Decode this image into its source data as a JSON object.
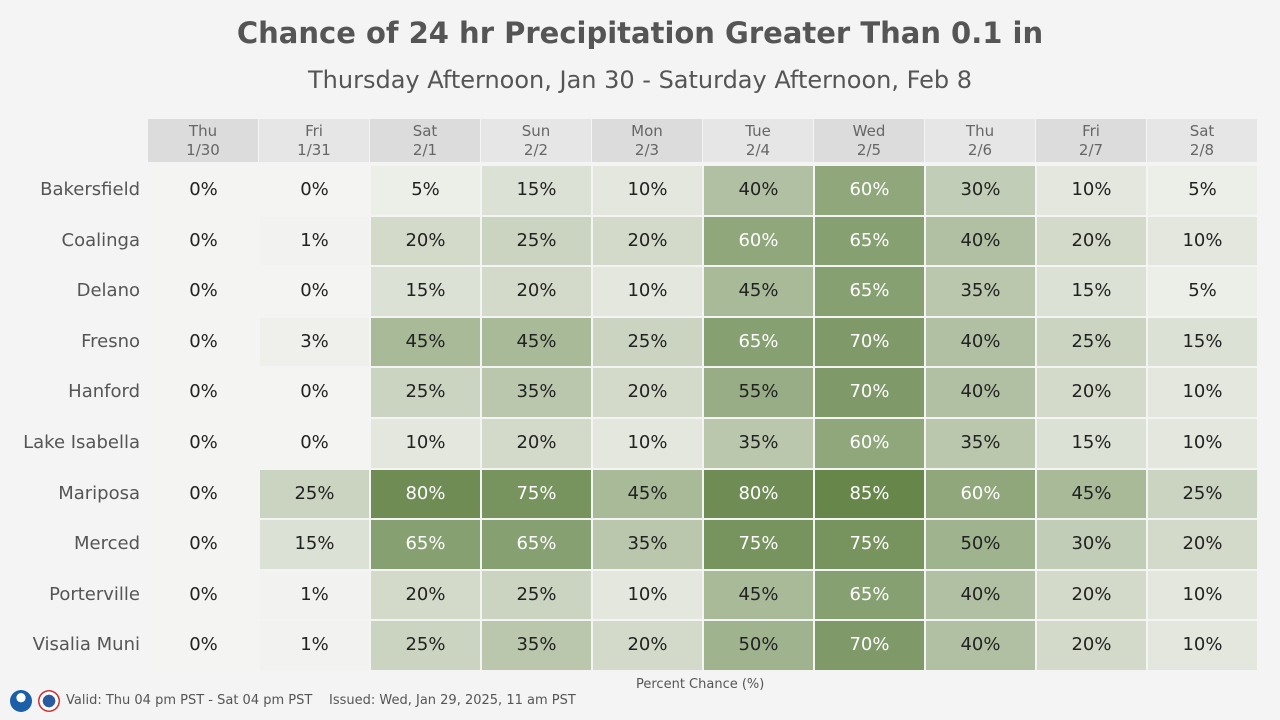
{
  "chart_data": {
    "type": "heatmap",
    "title": "Chance of 24 hr Precipitation Greater Than 0.1 in",
    "subtitle": "Thursday Afternoon, Jan 30 - Saturday Afternoon, Feb 8",
    "columns": [
      {
        "day": "Thu",
        "date": "1/30"
      },
      {
        "day": "Fri",
        "date": "1/31"
      },
      {
        "day": "Sat",
        "date": "2/1"
      },
      {
        "day": "Sun",
        "date": "2/2"
      },
      {
        "day": "Mon",
        "date": "2/3"
      },
      {
        "day": "Tue",
        "date": "2/4"
      },
      {
        "day": "Wed",
        "date": "2/5"
      },
      {
        "day": "Thu",
        "date": "2/6"
      },
      {
        "day": "Fri",
        "date": "2/7"
      },
      {
        "day": "Sat",
        "date": "2/8"
      }
    ],
    "rows": [
      "Bakersfield",
      "Coalinga",
      "Delano",
      "Fresno",
      "Hanford",
      "Lake Isabella",
      "Mariposa",
      "Merced",
      "Porterville",
      "Visalia Muni"
    ],
    "values": [
      [
        0,
        0,
        5,
        15,
        10,
        40,
        60,
        30,
        10,
        5
      ],
      [
        0,
        1,
        20,
        25,
        20,
        60,
        65,
        40,
        20,
        10
      ],
      [
        0,
        0,
        15,
        20,
        10,
        45,
        65,
        35,
        15,
        5
      ],
      [
        0,
        3,
        45,
        45,
        25,
        65,
        70,
        40,
        25,
        15
      ],
      [
        0,
        0,
        25,
        35,
        20,
        55,
        70,
        40,
        20,
        10
      ],
      [
        0,
        0,
        10,
        20,
        10,
        35,
        60,
        35,
        15,
        10
      ],
      [
        0,
        25,
        80,
        75,
        45,
        80,
        85,
        60,
        45,
        25
      ],
      [
        0,
        15,
        65,
        65,
        35,
        75,
        75,
        50,
        30,
        20
      ],
      [
        0,
        1,
        20,
        25,
        10,
        45,
        65,
        40,
        20,
        10
      ],
      [
        0,
        1,
        25,
        35,
        20,
        50,
        70,
        40,
        20,
        10
      ]
    ],
    "unit": "%",
    "legend_label": "Percent Chance (%)",
    "color_low": "#f4f4f2",
    "color_high": "#66864a"
  },
  "footer": {
    "valid": "Valid: Thu 04 pm PST - Sat 04 pm PST",
    "issued": "Issued: Wed, Jan 29, 2025, 11 am PST",
    "logos": [
      "noaa-logo",
      "nws-logo"
    ]
  }
}
